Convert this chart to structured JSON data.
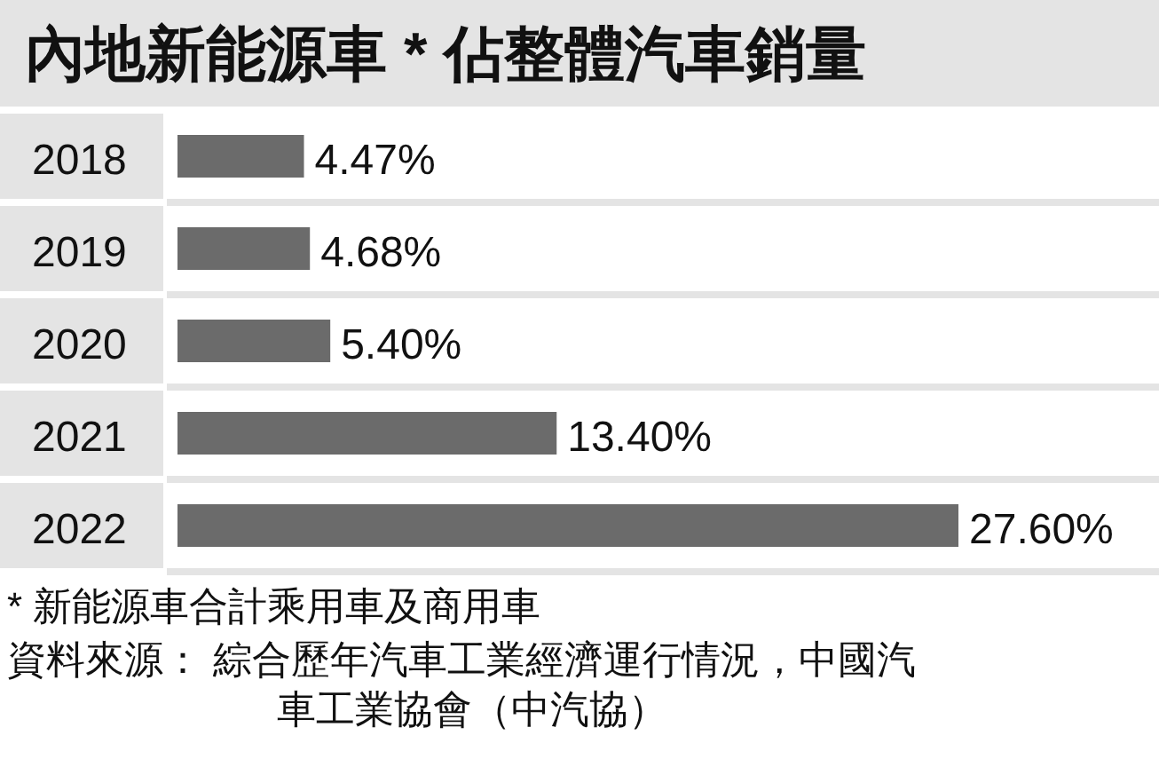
{
  "chart_data": {
    "type": "bar",
    "orientation": "horizontal",
    "title": "內地新能源車 * 佔整體汽車銷量",
    "categories": [
      "2018",
      "2019",
      "2020",
      "2021",
      "2022"
    ],
    "values": [
      4.47,
      4.68,
      5.4,
      13.4,
      27.6
    ],
    "value_labels": [
      "4.47%",
      "4.68%",
      "5.40%",
      "13.40%",
      "27.60%"
    ],
    "color": "#6b6b6b",
    "annotations": [
      "* 新能源車合計乘用車及商用車",
      "資料來源： 綜合歷年汽車工業經濟運行情況，中國汽車工業協會（中汽協）"
    ]
  }
}
